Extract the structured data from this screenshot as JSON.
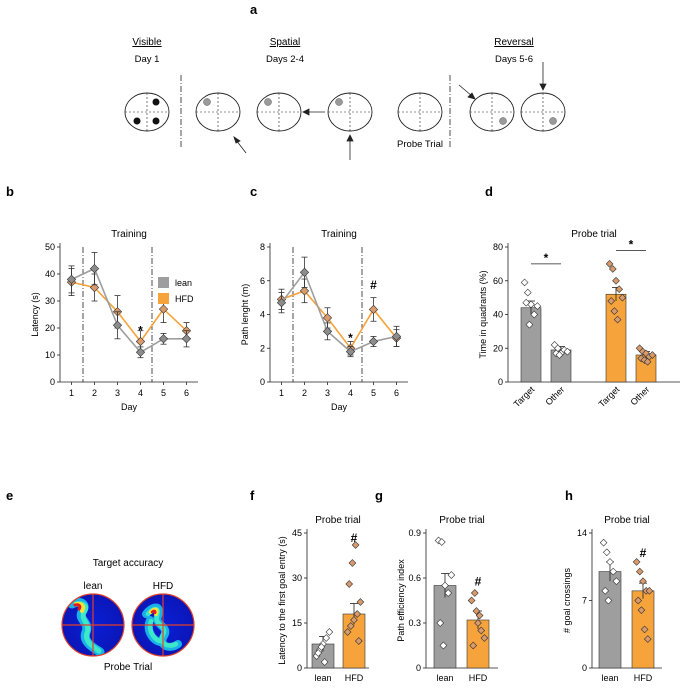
{
  "panel_labels": [
    "a",
    "b",
    "c",
    "d",
    "e",
    "f",
    "g",
    "h"
  ],
  "schematic": {
    "visible_title": "Visible",
    "visible_days": "Day 1",
    "spatial_title": "Spatial",
    "spatial_days": "Days 2-4",
    "reversal_title": "Reversal",
    "reversal_days": "Days 5-6",
    "probe_label": "Probe Trial"
  },
  "heatmaps": {
    "title": "Target accuracy",
    "lean_label": "lean",
    "hfd_label": "HFD",
    "caption": "Probe Trial"
  },
  "colors": {
    "lean": "#9e9e9e",
    "hfd": "#f5a33a",
    "lean_marker": "#8c8c8c",
    "hfd_marker": "#d99a6c"
  },
  "chart_data": [
    {
      "id": "b",
      "type": "line",
      "title": "Training",
      "xlabel": "Day",
      "ylabel": "Latency (s)",
      "x": [
        1,
        2,
        3,
        4,
        5,
        6
      ],
      "ylim": [
        0,
        50
      ],
      "yticks": [
        0,
        10,
        20,
        30,
        40,
        50
      ],
      "legend": [
        "lean",
        "HFD"
      ],
      "series": [
        {
          "name": "lean",
          "values": [
            38,
            42,
            21,
            11,
            16,
            16
          ],
          "err": [
            5,
            6,
            5,
            2,
            2,
            3
          ]
        },
        {
          "name": "HFD",
          "values": [
            37,
            35,
            26,
            15,
            27,
            19
          ],
          "err": [
            5,
            5,
            6,
            4,
            5,
            3
          ]
        }
      ],
      "dividers": [
        1.5,
        4.5
      ],
      "annotations": [
        {
          "x": 4,
          "y": 19,
          "text": "*"
        },
        {
          "x": 5,
          "y": 35,
          "text": "#"
        }
      ]
    },
    {
      "id": "c",
      "type": "line",
      "title": "Training",
      "xlabel": "Day",
      "ylabel": "Path lenght (m)",
      "x": [
        1,
        2,
        3,
        4,
        5,
        6
      ],
      "ylim": [
        0,
        8
      ],
      "yticks": [
        0,
        2,
        4,
        6,
        8
      ],
      "series": [
        {
          "name": "lean",
          "values": [
            4.7,
            6.5,
            3.0,
            1.8,
            2.4,
            2.7
          ],
          "err": [
            0.6,
            0.9,
            0.5,
            0.3,
            0.3,
            0.6
          ]
        },
        {
          "name": "HFD",
          "values": [
            4.9,
            5.4,
            3.8,
            2.0,
            4.3,
            2.6
          ],
          "err": [
            0.6,
            0.7,
            0.6,
            0.4,
            0.7,
            0.5
          ]
        }
      ],
      "dividers": [
        1.5,
        4.5
      ],
      "annotations": [
        {
          "x": 4,
          "y": 2.6,
          "text": "*"
        },
        {
          "x": 5,
          "y": 5.5,
          "text": "#"
        }
      ]
    },
    {
      "id": "d",
      "type": "bar",
      "title": "Probe trial",
      "ylabel": "Time in quadrants (%)",
      "ylim": [
        0,
        80
      ],
      "yticks": [
        0,
        20,
        40,
        60,
        80
      ],
      "categories": [
        "Target",
        "Other",
        "Target",
        "Other"
      ],
      "groups": [
        "lean",
        "lean",
        "HFD",
        "HFD"
      ],
      "values": [
        44,
        19,
        52,
        16
      ],
      "err": [
        4,
        2,
        4,
        2
      ],
      "points": [
        [
          59,
          53,
          46,
          40,
          45,
          47,
          34
        ],
        [
          22,
          20,
          17,
          19,
          18,
          17,
          16
        ],
        [
          70,
          67,
          60,
          55,
          50,
          48,
          42,
          37
        ],
        [
          20,
          18,
          17,
          15,
          16,
          14,
          13,
          12
        ]
      ],
      "annotations": [
        {
          "group_index": 0,
          "y": 70,
          "text": "*"
        },
        {
          "group_index": 2,
          "y": 78,
          "text": "*"
        }
      ]
    },
    {
      "id": "f",
      "type": "bar",
      "title": "Probe trial",
      "ylabel": "Latency to the first goal entry (s)",
      "ylim": [
        0,
        45
      ],
      "yticks": [
        0,
        15,
        30,
        45
      ],
      "categories": [
        "lean",
        "HFD"
      ],
      "values": [
        8,
        18
      ],
      "err": [
        2.5,
        3.5
      ],
      "points": [
        [
          4,
          6,
          8,
          10,
          12,
          5,
          7,
          2
        ],
        [
          12,
          14,
          16,
          18,
          22,
          28,
          35,
          41,
          9
        ]
      ],
      "annotations": [
        {
          "index": 1,
          "y": 42,
          "text": "#"
        }
      ]
    },
    {
      "id": "g",
      "type": "bar",
      "title": "Probe trial",
      "ylabel": "Path efficiency index",
      "ylim": [
        0,
        0.9
      ],
      "yticks": [
        0,
        0.3,
        0.6,
        0.9
      ],
      "categories": [
        "lean",
        "HFD"
      ],
      "values": [
        0.55,
        0.32
      ],
      "err": [
        0.08,
        0.06
      ],
      "points": [
        [
          0.85,
          0.84,
          0.55,
          0.5,
          0.62,
          0.3,
          0.15
        ],
        [
          0.45,
          0.5,
          0.3,
          0.25,
          0.2,
          0.15,
          0.38,
          0.35
        ]
      ],
      "annotations": [
        {
          "index": 1,
          "y": 0.55,
          "text": "#"
        }
      ]
    },
    {
      "id": "h",
      "type": "bar",
      "title": "Probe trial",
      "ylabel": "# goal crossings",
      "ylim": [
        0,
        14
      ],
      "yticks": [
        0,
        7,
        14
      ],
      "categories": [
        "lean",
        "HFD"
      ],
      "values": [
        10,
        8
      ],
      "err": [
        1,
        0.8
      ],
      "points": [
        [
          13,
          12,
          11,
          10,
          9,
          8,
          7
        ],
        [
          11,
          10,
          9,
          8,
          8,
          7,
          6,
          4,
          3
        ]
      ],
      "annotations": [
        {
          "index": 1,
          "y": 11.5,
          "text": "#"
        }
      ]
    }
  ]
}
